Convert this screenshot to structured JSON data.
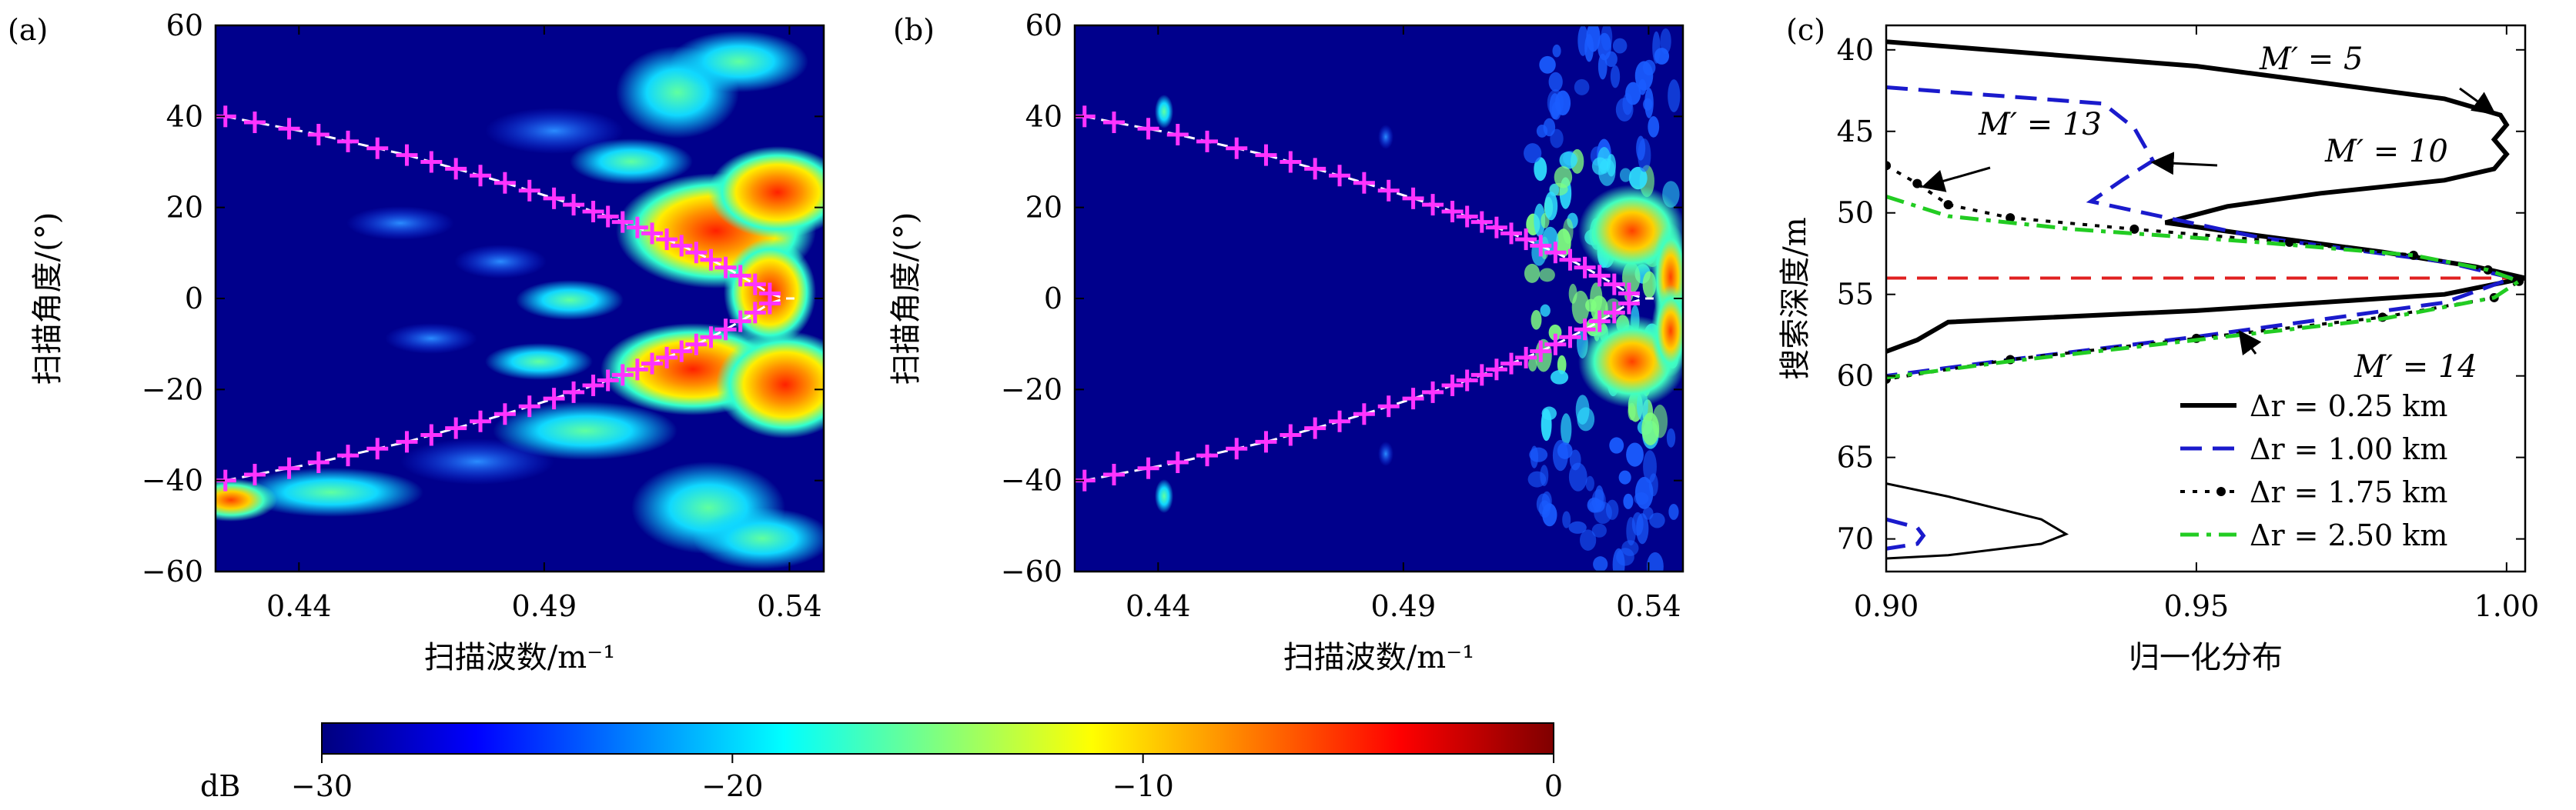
{
  "figure": {
    "colorbar": {
      "unit_label": "dB",
      "range": [
        -30,
        0
      ],
      "ticks": [
        -30,
        -20,
        -10,
        0
      ],
      "tick_labels": [
        "−30",
        "−20",
        "−10",
        "0"
      ],
      "colormap": "jet"
    }
  },
  "chart_data": [
    {
      "panel_label": "(a)",
      "type": "heatmap",
      "xlabel": "扫描波数/m⁻¹",
      "ylabel": "扫描角度/(°)",
      "xlim": [
        0.423,
        0.547
      ],
      "ylim": [
        -60,
        60
      ],
      "xticks": [
        0.44,
        0.49,
        0.54
      ],
      "xtick_labels": [
        "0.44",
        "0.49",
        "0.54"
      ],
      "yticks": [
        60,
        40,
        20,
        0,
        -20,
        -40,
        -60
      ],
      "ytick_labels": [
        "60",
        "40",
        "20",
        "0",
        "−20",
        "−40",
        "−60"
      ],
      "marker_series": {
        "marker": "+",
        "color": "#ff33ff",
        "x": [
          0.425,
          0.431,
          0.438,
          0.444,
          0.45,
          0.456,
          0.462,
          0.467,
          0.472,
          0.477,
          0.482,
          0.487,
          0.492,
          0.496,
          0.5,
          0.503,
          0.506,
          0.509,
          0.512,
          0.515,
          0.518,
          0.521,
          0.524,
          0.527,
          0.53,
          0.533,
          0.536,
          0.539,
          0.541,
          0.543,
          0.544,
          0.545,
          0.546
        ],
        "y": [
          40,
          38.7,
          37.3,
          36,
          34.5,
          33,
          31.5,
          30,
          28.5,
          27,
          25.4,
          23.7,
          22,
          20.6,
          19.1,
          18,
          16.8,
          15.6,
          14.3,
          13,
          11.6,
          10.1,
          8.5,
          6.8,
          5,
          3.1,
          1.1,
          -1,
          -3,
          -5,
          -7,
          -9,
          0
        ]
      },
      "reference_line": {
        "color": "#ffffff",
        "style": "dashed"
      }
    },
    {
      "panel_label": "(b)",
      "type": "heatmap",
      "xlabel": "扫描波数/m⁻¹",
      "ylabel": "扫描角度/(°)",
      "xlim": [
        0.423,
        0.547
      ],
      "ylim": [
        -60,
        60
      ],
      "xticks": [
        0.44,
        0.49,
        0.54
      ],
      "xtick_labels": [
        "0.44",
        "0.49",
        "0.54"
      ],
      "yticks": [
        60,
        40,
        20,
        0,
        -20,
        -40,
        -60
      ],
      "ytick_labels": [
        "60",
        "40",
        "20",
        "0",
        "−20",
        "−40",
        "−60"
      ],
      "marker_series": {
        "marker": "+",
        "color": "#ff33ff"
      },
      "reference_line": {
        "color": "#ffffff",
        "style": "dashed"
      }
    },
    {
      "panel_label": "(c)",
      "type": "line",
      "xlabel": "归一化分布",
      "ylabel": "搜索深度/m",
      "xlim": [
        0.9,
        1.003
      ],
      "ylim": [
        38.5,
        72
      ],
      "y_inverted": true,
      "xticks": [
        0.9,
        0.95,
        1.0
      ],
      "xtick_labels": [
        "0.90",
        "0.95",
        "1.00"
      ],
      "yticks": [
        40,
        45,
        50,
        55,
        60,
        65,
        70
      ],
      "ytick_labels": [
        "40",
        "45",
        "50",
        "55",
        "60",
        "65",
        "70"
      ],
      "reference_depth": {
        "y": 54,
        "color": "#e02020",
        "style": "dashed"
      },
      "series": [
        {
          "name": "Δr = 0.25 km",
          "color": "#000000",
          "style": "solid",
          "x": [
            0.9,
            0.95,
            0.99,
            0.999,
            1.0,
            0.998,
            1.0,
            0.998,
            0.99,
            0.97,
            0.955,
            0.945,
            0.96,
            0.98,
            0.995,
            1.003,
            0.99,
            0.95,
            0.91,
            0.905,
            0.9
          ],
          "y": [
            39.5,
            41.0,
            43.0,
            44.0,
            44.6,
            45.5,
            46.4,
            47.3,
            48.0,
            48.8,
            49.6,
            50.6,
            51.4,
            52.4,
            53.3,
            54.0,
            55.0,
            56.0,
            56.7,
            57.8,
            58.5
          ]
        },
        {
          "name": "Δr = 1.00 km",
          "color": "#1a1acc",
          "style": "dashed",
          "x": [
            0.9,
            0.935,
            0.94,
            0.943,
            0.938,
            0.933,
            0.96,
            0.99,
            1.001,
            0.99,
            0.95,
            0.92,
            0.9
          ],
          "y": [
            42.3,
            43.3,
            44.8,
            46.8,
            48.0,
            49.3,
            51.5,
            53.0,
            54.0,
            55.5,
            57.6,
            59.0,
            60.0
          ]
        },
        {
          "name": "Δr = 1.75 km",
          "color": "#000000",
          "style": "dotted-markers",
          "x": [
            0.9,
            0.905,
            0.91,
            0.92,
            0.94,
            0.965,
            0.985,
            0.997,
            1.002,
            0.998,
            0.98,
            0.95,
            0.92,
            0.9
          ],
          "y": [
            47.1,
            48.2,
            49.5,
            50.3,
            51.0,
            51.8,
            52.6,
            53.5,
            54.2,
            55.2,
            56.4,
            57.7,
            59.0,
            60.2
          ]
        },
        {
          "name": "Δr = 2.50 km",
          "color": "#22cc22",
          "style": "dashdot",
          "x": [
            0.9,
            0.91,
            0.93,
            0.96,
            0.985,
            0.997,
            1.002,
            0.998,
            0.98,
            0.95,
            0.92,
            0.9
          ],
          "y": [
            49.0,
            50.2,
            51.0,
            51.8,
            52.6,
            53.5,
            54.2,
            55.2,
            56.5,
            57.8,
            59.1,
            60.1
          ]
        },
        {
          "name": "",
          "color": "#000000",
          "style": "thin",
          "legend": false,
          "x": [
            0.9,
            0.91,
            0.925,
            0.929,
            0.925,
            0.91,
            0.9
          ],
          "y": [
            66.6,
            67.4,
            68.8,
            69.7,
            70.3,
            71.0,
            71.2
          ]
        },
        {
          "name": "",
          "color": "#1a1acc",
          "style": "dashed",
          "legend": false,
          "x": [
            0.9,
            0.905,
            0.906,
            0.905,
            0.9
          ],
          "y": [
            68.8,
            69.3,
            69.8,
            70.3,
            70.6
          ]
        }
      ],
      "annotations": [
        {
          "text": "M′ = 5",
          "arrow_to_series": "Δr = 0.25 km",
          "points_to": [
            0.998,
            43.9
          ]
        },
        {
          "text": "M′ = 10",
          "arrow_to_series": "Δr = 1.00 km",
          "points_to": [
            0.943,
            46.9
          ]
        },
        {
          "text": "M′ = 13",
          "arrow_to_series": "Δr = 1.75 km",
          "points_to": [
            0.906,
            48.4
          ]
        },
        {
          "text": "M′ = 14",
          "arrow_to_series": "Δr = 1.00 km",
          "points_to": [
            0.957,
            57.3
          ]
        }
      ],
      "legend_position": "lower-right"
    }
  ]
}
